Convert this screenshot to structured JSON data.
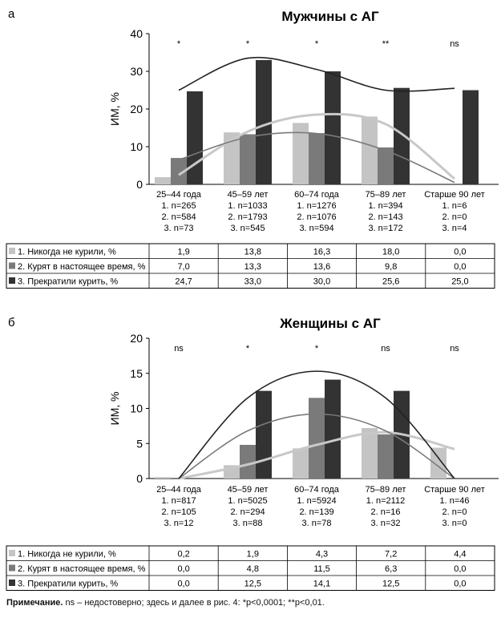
{
  "chart_data": [
    {
      "panel_letter": "а",
      "type": "bar",
      "title": "Мужчины с АГ",
      "ylabel": "ИМ, %",
      "ylim": [
        0,
        40
      ],
      "yticks": [
        "0",
        "10",
        "20",
        "30",
        "40"
      ],
      "categories": [
        "25–44 года",
        "45–59 лет",
        "60–74 года",
        "75–89 лет",
        "Старше 90 лет"
      ],
      "counts": [
        [
          "1. n=265",
          "2. n=584",
          "3. n=73"
        ],
        [
          "1. n=1033",
          "2. n=1793",
          "3. n=545"
        ],
        [
          "1. n=1276",
          "2. n=1076",
          "3. n=594"
        ],
        [
          "1. n=394",
          "2. n=143",
          "3. n=172"
        ],
        [
          "1. n=6",
          "2. n=0",
          "3. n=4"
        ]
      ],
      "significance": [
        "*",
        "*",
        "*",
        "**",
        "ns"
      ],
      "series": [
        {
          "name": "1. Никогда не курили, %",
          "color": "#c4c4c4",
          "values": [
            1.9,
            13.8,
            16.3,
            18.0,
            0.0
          ],
          "labels": [
            "1,9",
            "13,8",
            "16,3",
            "18,0",
            "0,0"
          ],
          "trend": [
            2.5,
            14.0,
            18.5,
            16.0,
            1.5
          ]
        },
        {
          "name": "2. Курят в настоящее время, %",
          "color": "#7a7a7a",
          "values": [
            7.0,
            13.3,
            13.6,
            9.8,
            0.0
          ],
          "labels": [
            "7,0",
            "13,3",
            "13,6",
            "9,8",
            "0,0"
          ],
          "trend": [
            6.5,
            12.5,
            13.5,
            9.0,
            0.5
          ]
        },
        {
          "name": "3. Прекратили курить, %",
          "color": "#333333",
          "values": [
            24.7,
            33.0,
            30.0,
            25.6,
            25.0
          ],
          "labels": [
            "24,7",
            "33,0",
            "30,0",
            "25,6",
            "25,0"
          ],
          "trend": [
            25.0,
            33.5,
            30.5,
            25.0,
            25.5
          ]
        }
      ]
    },
    {
      "panel_letter": "б",
      "type": "bar",
      "title": "Женщины с АГ",
      "ylabel": "ИМ, %",
      "ylim": [
        0,
        20
      ],
      "yticks": [
        "0",
        "5",
        "10",
        "15",
        "20"
      ],
      "categories": [
        "25–44 года",
        "45–59 лет",
        "60–74 года",
        "75–89 лет",
        "Старше 90 лет"
      ],
      "counts": [
        [
          "1. n=817",
          "2. n=105",
          "3. n=12"
        ],
        [
          "1. n=5025",
          "2. n=294",
          "3. n=88"
        ],
        [
          "1. n=5924",
          "2. n=139",
          "3. n=78"
        ],
        [
          "1. n=2112",
          "2. n=16",
          "3. n=32"
        ],
        [
          "1. n=46",
          "2. n=0",
          "3. n=0"
        ]
      ],
      "significance": [
        "ns",
        "*",
        "*",
        "ns",
        "ns"
      ],
      "series": [
        {
          "name": "1. Никогда не курили, %",
          "color": "#c4c4c4",
          "values": [
            0.2,
            1.9,
            4.3,
            7.2,
            4.4
          ],
          "labels": [
            "0,2",
            "1,9",
            "4,3",
            "7,2",
            "4,4"
          ],
          "trend": [
            0.0,
            2.0,
            4.8,
            6.6,
            4.2
          ]
        },
        {
          "name": "2. Курят в настоящее время, %",
          "color": "#7a7a7a",
          "values": [
            0.0,
            4.8,
            11.5,
            6.3,
            0.0
          ],
          "labels": [
            "0,0",
            "4,8",
            "11,5",
            "6,3",
            "0,0"
          ],
          "trend": [
            0.0,
            6.8,
            9.2,
            6.8,
            0.0
          ]
        },
        {
          "name": "3. Прекратили курить, %",
          "color": "#333333",
          "values": [
            0.0,
            12.5,
            14.1,
            12.5,
            0.0
          ],
          "labels": [
            "0,0",
            "12,5",
            "14,1",
            "12,5",
            "0,0"
          ],
          "trend": [
            0.0,
            11.5,
            15.3,
            11.5,
            0.0
          ]
        }
      ]
    }
  ],
  "note": {
    "label": "Примечание.",
    "text": " ns – недостоверно; здесь и далее в рис. 4: *p<0,0001; **p<0,01."
  }
}
